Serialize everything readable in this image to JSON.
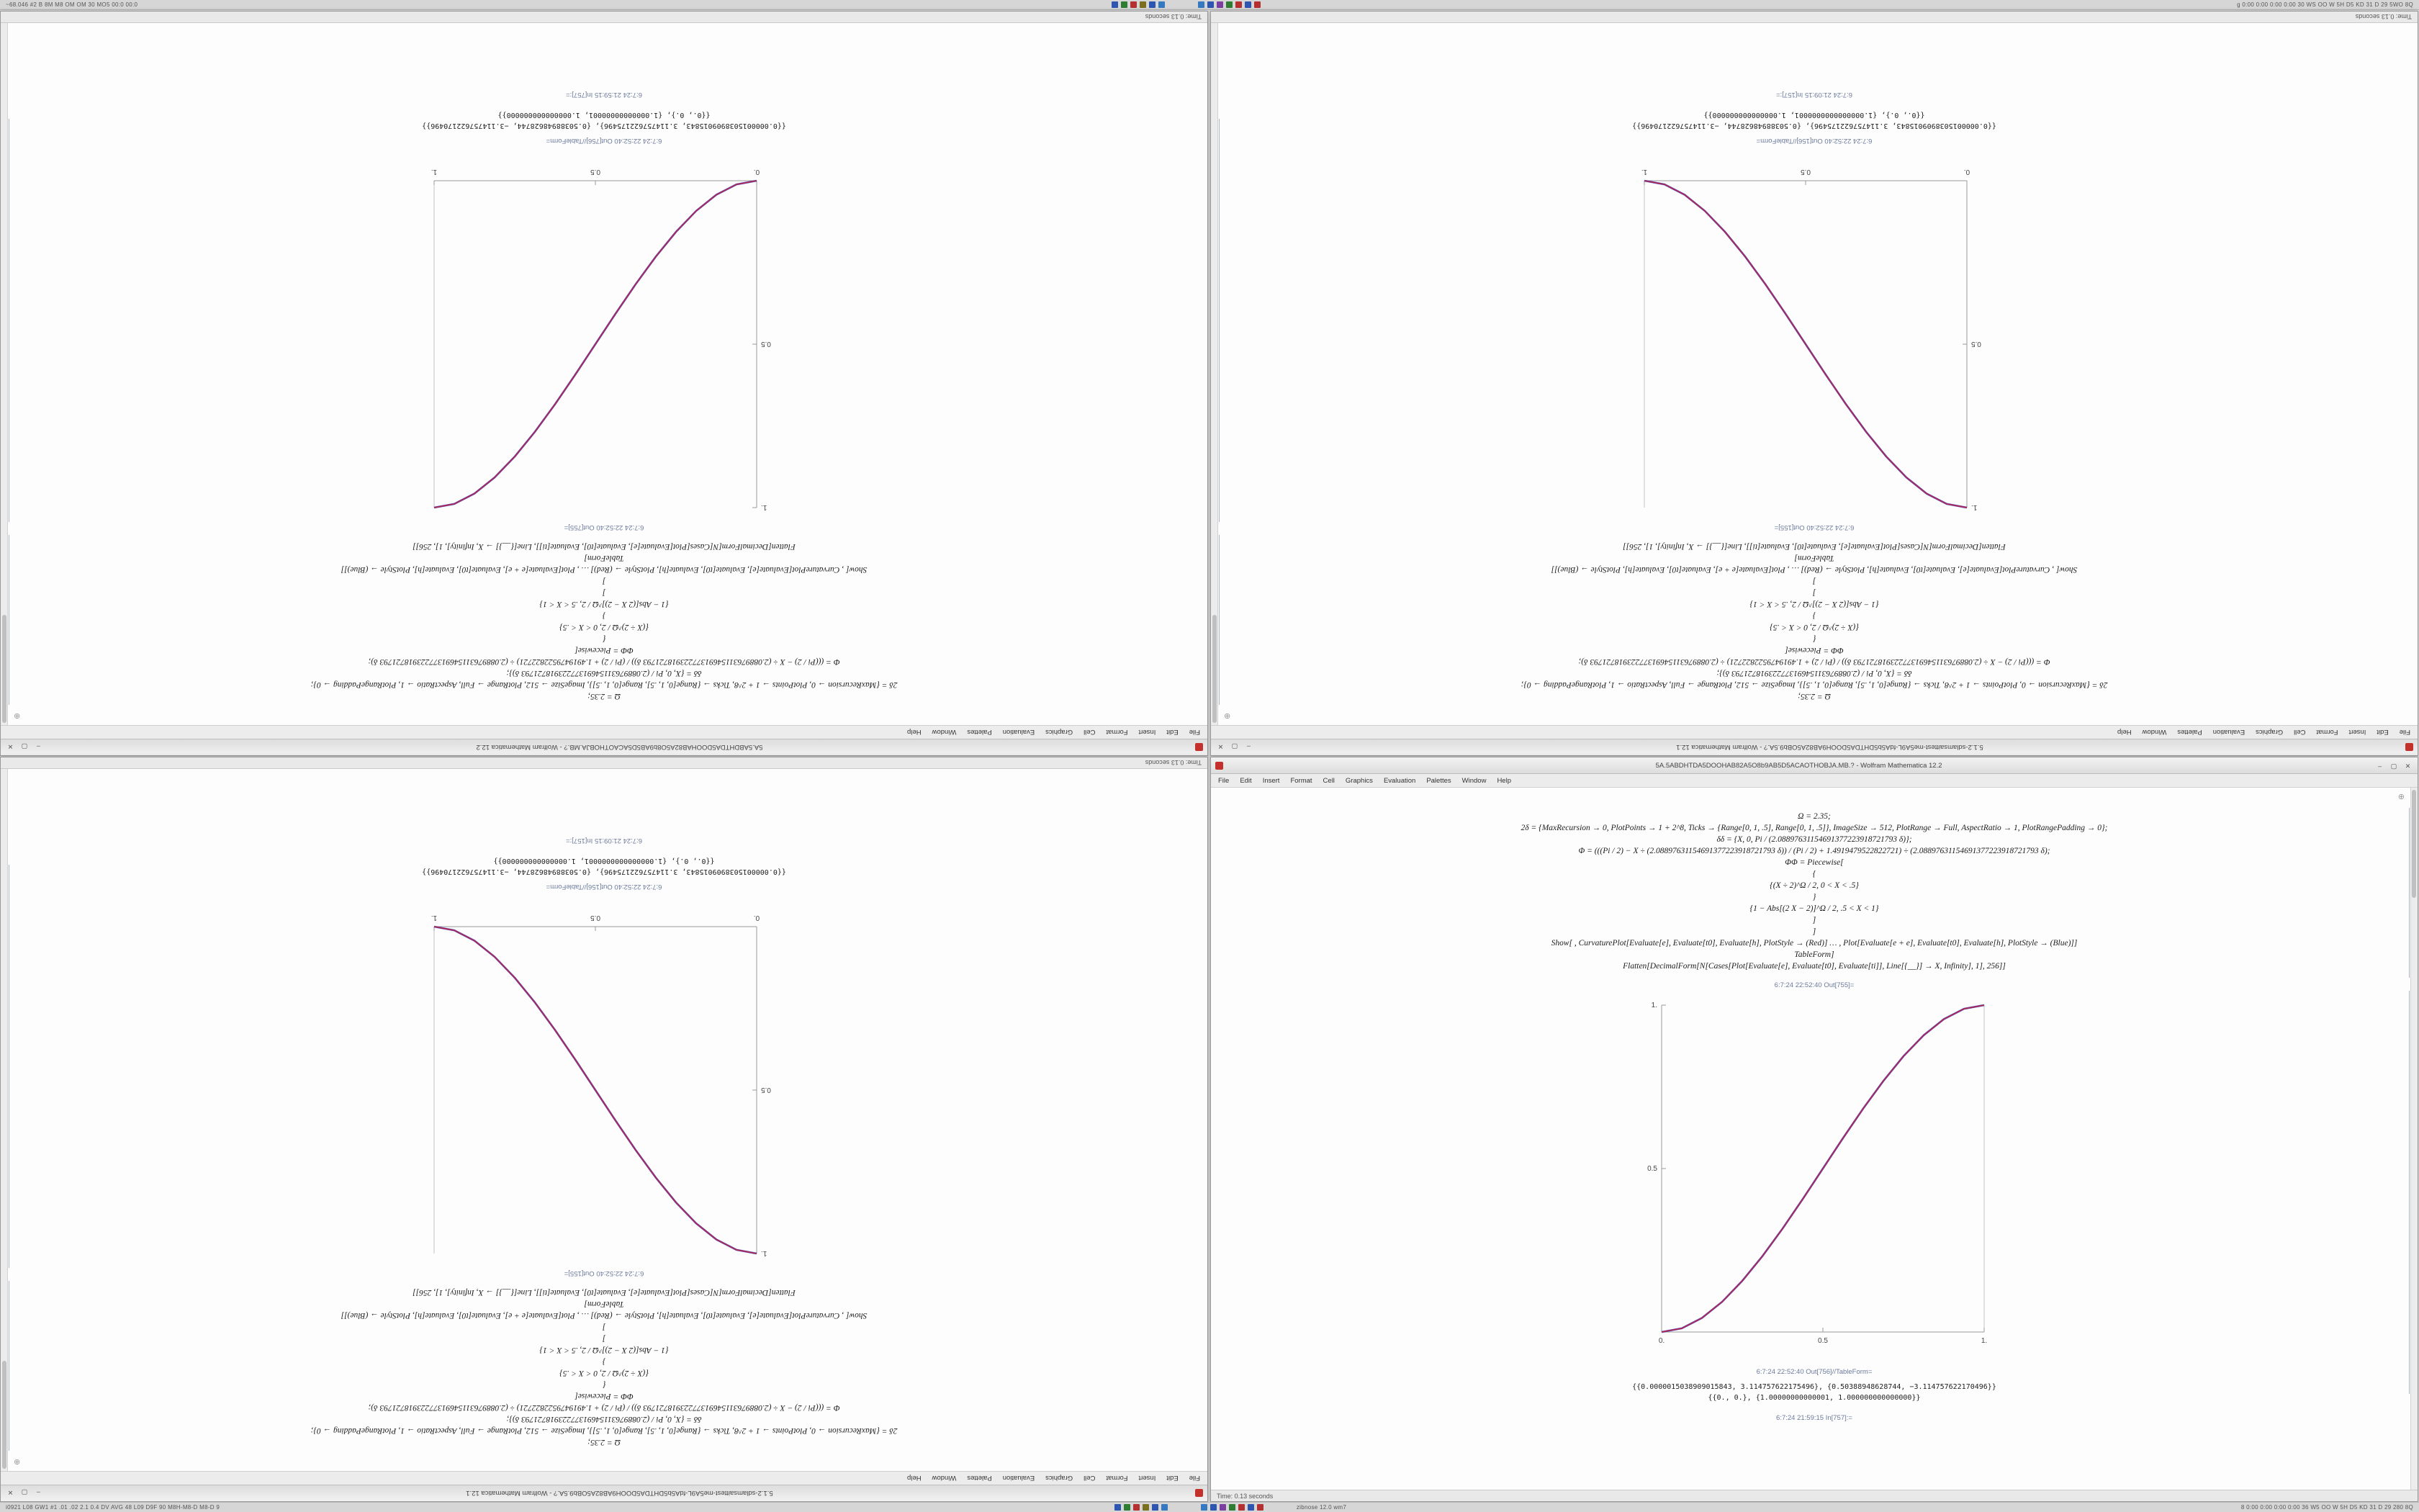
{
  "desktop": {
    "top_bar": {
      "left_text": "~68.046 #2 B 8M M8 OM OM 30 MO5 00:0 00:0",
      "right_text": "g 0:00 0:00 0:00 0:00 30 WS OO W 5H D5 KD 31 D 29 5WO 8Q"
    },
    "bottom_bar": {
      "left_text": "i0921 L08 GW1 #1 .01 .02 2.1 0.4 DV AVG 48 L09 D9F 90 M8H-M8-D M8-D 9",
      "center_text": "zibnose 12.0 wm7",
      "right_text": "8 0:00 0:00 0:00 0:00 36 W5 OO W 5H D5 KD 31 D 29 280 8Q"
    },
    "icon_clusters": {
      "c1": [
        "#2e55b0",
        "#2f7d32",
        "#b53030",
        "#7a7020",
        "#2e55b0",
        "#3579c0"
      ],
      "c2": [
        "#3579c0",
        "#2e55b0",
        "#7a3fa0",
        "#2f7d32",
        "#b53030",
        "#2e55b0",
        "#b53030"
      ]
    }
  },
  "menu": [
    "File",
    "Edit",
    "Insert",
    "Format",
    "Cell",
    "Graphics",
    "Evaluation",
    "Palettes",
    "Window",
    "Help"
  ],
  "status_text": "Time: 0.13 seconds",
  "window_controls": {
    "minimize": "–",
    "maximize": "▢",
    "close": "✕",
    "corner": "⊕"
  },
  "notebooks": [
    {
      "title": "5A.5ABDHTDA5DOOHAB82A5O8b9AB5D5ACAOTHOBJA.MB.? - Wolfram Mathematica 12.2",
      "chart": 0,
      "cells": [
        "Ω = 2.35;",
        "2δ = {MaxRecursion → 0, PlotPoints → 1 + 2^8, Ticks → {Range[0, 1, .5], Range[0, 1, .5]}, ImageSize → 512, PlotRange → Full, AspectRatio → 1, PlotRangePadding → 0};",
        "δδ = {X, 0, Pi / (2.08897631154691377223918721793 δ)};",
        "Φ = (((Pi / 2) − X ÷ (2.08897631154691377223918721793 δ)) / (Pi / 2) + 1.4919479522822721) ÷ (2.08897631154691377223918721793 δ);",
        "ΦΦ = Piecewise[",
        "{",
        "{(X ÷ 2)^Ω / 2, 0 < X < .5}",
        "}",
        "{1 − Abs[(2 X − 2)]^Ω / 2, .5 < X < 1}",
        "]",
        "]",
        "Show[ , CurvaturePlot[Evaluate[e], Evaluate[t0], Evaluate[h], PlotStyle → (Red)] … , Plot[Evaluate[e + e], Evaluate[t0], Evaluate[h], PlotStyle → (Blue)]]",
        "TableForm]",
        "Flatten[DecimalForm[N[Cases[Plot[Evaluate[e], Evaluate[t0], Evaluate[ti]], Line[{__}] → X, Infinity], 1], 256]]"
      ],
      "labels": {
        "out_plot": "6:7:24 22:52:40 Out[755]=",
        "out_table": "6:7:24 22:52:40 Out[756]//TableForm=",
        "in_next": "6:7:24 21:59:15 In[757]:="
      },
      "results": [
        "{{0.0000015038909015843, 3.114757622175496}, {0.50388948628744, −3.114757622170496}}",
        "{{0., 0.}, {1.00000000000001, 1.000000000000000}}"
      ]
    },
    {
      "title": "5.1.2-sdlamsaittest-me5A9L-fdA5b5DHTDA5DOOH9AB82A5OBb9.5A.? - Wolfram Mathematica 12.1",
      "chart": 1,
      "cells": [
        "Ω = 2.35;",
        "2δ = {MaxRecursion → 0, PlotPoints → 1 + 2^8, Ticks → {Range[0, 1, .5], Range[0, 1, .5]}, ImageSize → 512, PlotRange → Full, AspectRatio → 1, PlotRangePadding → 0};",
        "δδ = {X, 0, Pi / (2.08897631154691377223918721793 δ)};",
        "Φ = (((Pi / 2) − X ÷ (2.08897631154691377223918721793 δ)) / (Pi / 2) + 1.4919479522822721) ÷ (2.08897631154691377223918721793 δ);",
        "ΦΦ = Piecewise[",
        "{",
        "{(X ÷ 2)^Ω / 2, 0 < X < .5}",
        "}",
        "{1 − Abs[(2 X − 2)]^Ω / 2, .5 < X < 1}",
        "]",
        "]",
        "Show[ , CurvaturePlot[Evaluate[e], Evaluate[t0], Evaluate[h], PlotStyle → (Red)] … , Plot[Evaluate[e + e], Evaluate[t0], Evaluate[h], PlotStyle → (Blue)]]",
        "TableForm]",
        "Flatten[DecimalForm[N[Cases[Plot[Evaluate[e], Evaluate[t0], Evaluate[ti]], Line[{__}] → X, Infinity], 1], 256]]"
      ],
      "labels": {
        "out_plot": "6:7:24 22:52:40 Out[155]=",
        "out_table": "6:7:24 22:52:40 Out[156]//TableForm=",
        "in_next": "6:7:24 21:09:15 In[157]:="
      },
      "results": [
        "{{0.0000015038909015843, 3.114757622175496}, {0.50388948628744, −3.114757622170496}}",
        "{{0., 0.}, {1.0000000000000001, 1.000000000000000}}"
      ]
    }
  ],
  "windows": [
    {
      "pos": "tl",
      "notebook": 0,
      "rotated": true
    },
    {
      "pos": "tr",
      "notebook": 1,
      "rotated": true
    },
    {
      "pos": "bl",
      "notebook": 1,
      "rotated": true
    },
    {
      "pos": "br",
      "notebook": 0,
      "rotated": false
    }
  ],
  "chart_data": [
    {
      "type": "line",
      "name": "ascending-sigmoid",
      "x": [
        0,
        0.0625,
        0.125,
        0.1875,
        0.25,
        0.3125,
        0.375,
        0.4375,
        0.5,
        0.5625,
        0.625,
        0.6875,
        0.75,
        0.8125,
        0.875,
        0.9375,
        1
      ],
      "y": [
        0,
        0.0112,
        0.043,
        0.0923,
        0.1563,
        0.2319,
        0.3164,
        0.4067,
        0.5,
        0.5933,
        0.6836,
        0.7681,
        0.8438,
        0.9077,
        0.957,
        0.9888,
        1
      ],
      "x_ticks": [
        {
          "v": 0,
          "label": "0."
        },
        {
          "v": 0.5,
          "label": "0.5"
        },
        {
          "v": 1,
          "label": "1."
        }
      ],
      "y_ticks": [
        {
          "v": 0.5,
          "label": "0.5"
        },
        {
          "v": 1,
          "label": "1."
        }
      ],
      "xlim": [
        0,
        1
      ],
      "ylim": [
        0,
        1
      ],
      "grid": false,
      "legend": "none",
      "series": [
        {
          "name": "Plot (Blue)",
          "color": "#2b35c8"
        },
        {
          "name": "CurvaturePlot (Red)",
          "color": "#cc2233"
        }
      ]
    },
    {
      "type": "line",
      "name": "descending-sigmoid",
      "x": [
        0,
        0.0625,
        0.125,
        0.1875,
        0.25,
        0.3125,
        0.375,
        0.4375,
        0.5,
        0.5625,
        0.625,
        0.6875,
        0.75,
        0.8125,
        0.875,
        0.9375,
        1
      ],
      "y": [
        1,
        0.9888,
        0.957,
        0.9077,
        0.8438,
        0.7681,
        0.6836,
        0.5933,
        0.5,
        0.4067,
        0.3164,
        0.2319,
        0.1563,
        0.0923,
        0.043,
        0.0112,
        0
      ],
      "x_ticks": [
        {
          "v": 0,
          "label": "0."
        },
        {
          "v": 0.5,
          "label": "0.5"
        },
        {
          "v": 1,
          "label": "1."
        }
      ],
      "y_ticks": [
        {
          "v": 0.5,
          "label": "0.5"
        },
        {
          "v": 1,
          "label": "1."
        }
      ],
      "xlim": [
        0,
        1
      ],
      "ylim": [
        0,
        1
      ],
      "grid": false,
      "legend": "none",
      "series": [
        {
          "name": "Plot (Blue)",
          "color": "#2b35c8"
        },
        {
          "name": "CurvaturePlot (Red)",
          "color": "#cc2233"
        }
      ]
    }
  ]
}
